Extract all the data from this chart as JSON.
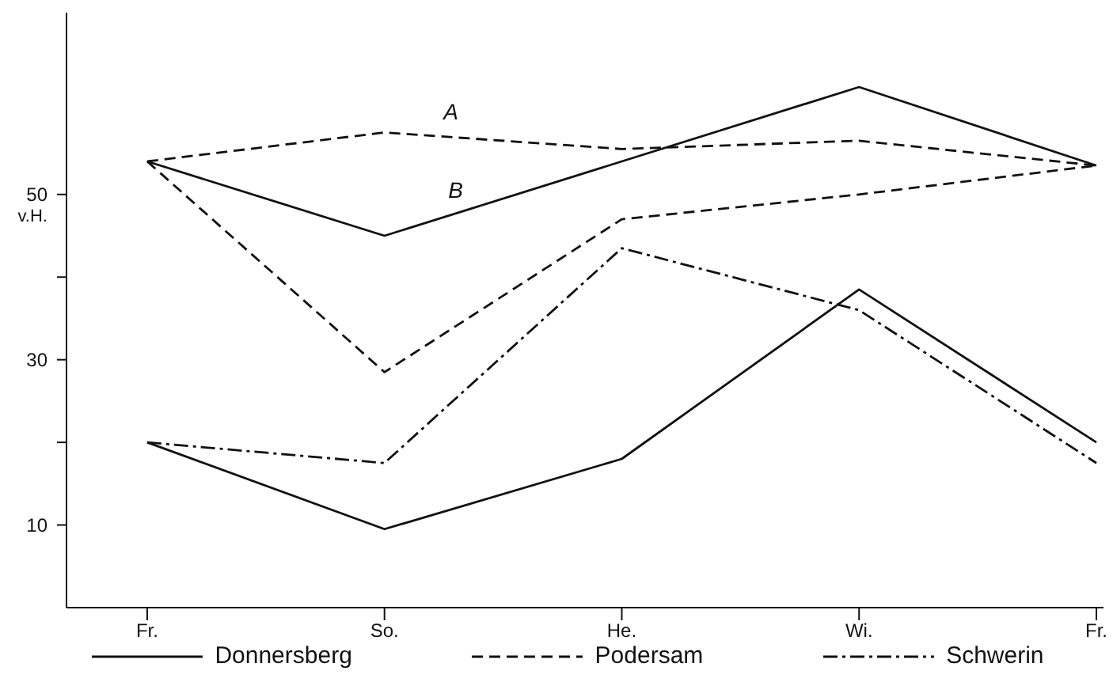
{
  "chart_data": {
    "type": "line",
    "ylabel": "v.H.",
    "categories": [
      "Fr.",
      "So.",
      "He.",
      "Wi.",
      "Fr."
    ],
    "series": [
      {
        "name": "Donnersberg",
        "color": "#111111",
        "line_style": "solid",
        "values": [
          54,
          45,
          54,
          63,
          53.5
        ]
      },
      {
        "name": "Podersam",
        "color": "#111111",
        "line_style": "dashed",
        "values": [
          54,
          57.5,
          55.5,
          56.5,
          53.5
        ]
      },
      {
        "color": "#111111",
        "line_style": "dashed",
        "values": [
          54,
          28.5,
          47,
          50,
          53.5
        ]
      },
      {
        "name": "Schwerin",
        "color": "#111111",
        "line_style": "dashdot",
        "values": [
          20,
          17.5,
          43.5,
          36,
          17.5
        ]
      },
      {
        "color": "#111111",
        "line_style": "solid",
        "values": [
          20,
          9.5,
          18,
          38.5,
          20
        ]
      }
    ],
    "annotations": [
      "A",
      "B"
    ],
    "ylim": [
      0,
      72
    ],
    "yticks": [
      {
        "value": 10,
        "label": "10"
      },
      {
        "value": 20,
        "label": null
      },
      {
        "value": 30,
        "label": "30"
      },
      {
        "value": 40,
        "label": null
      },
      {
        "value": 50,
        "label": "50"
      }
    ],
    "legend": "bottom",
    "marker": "none"
  }
}
